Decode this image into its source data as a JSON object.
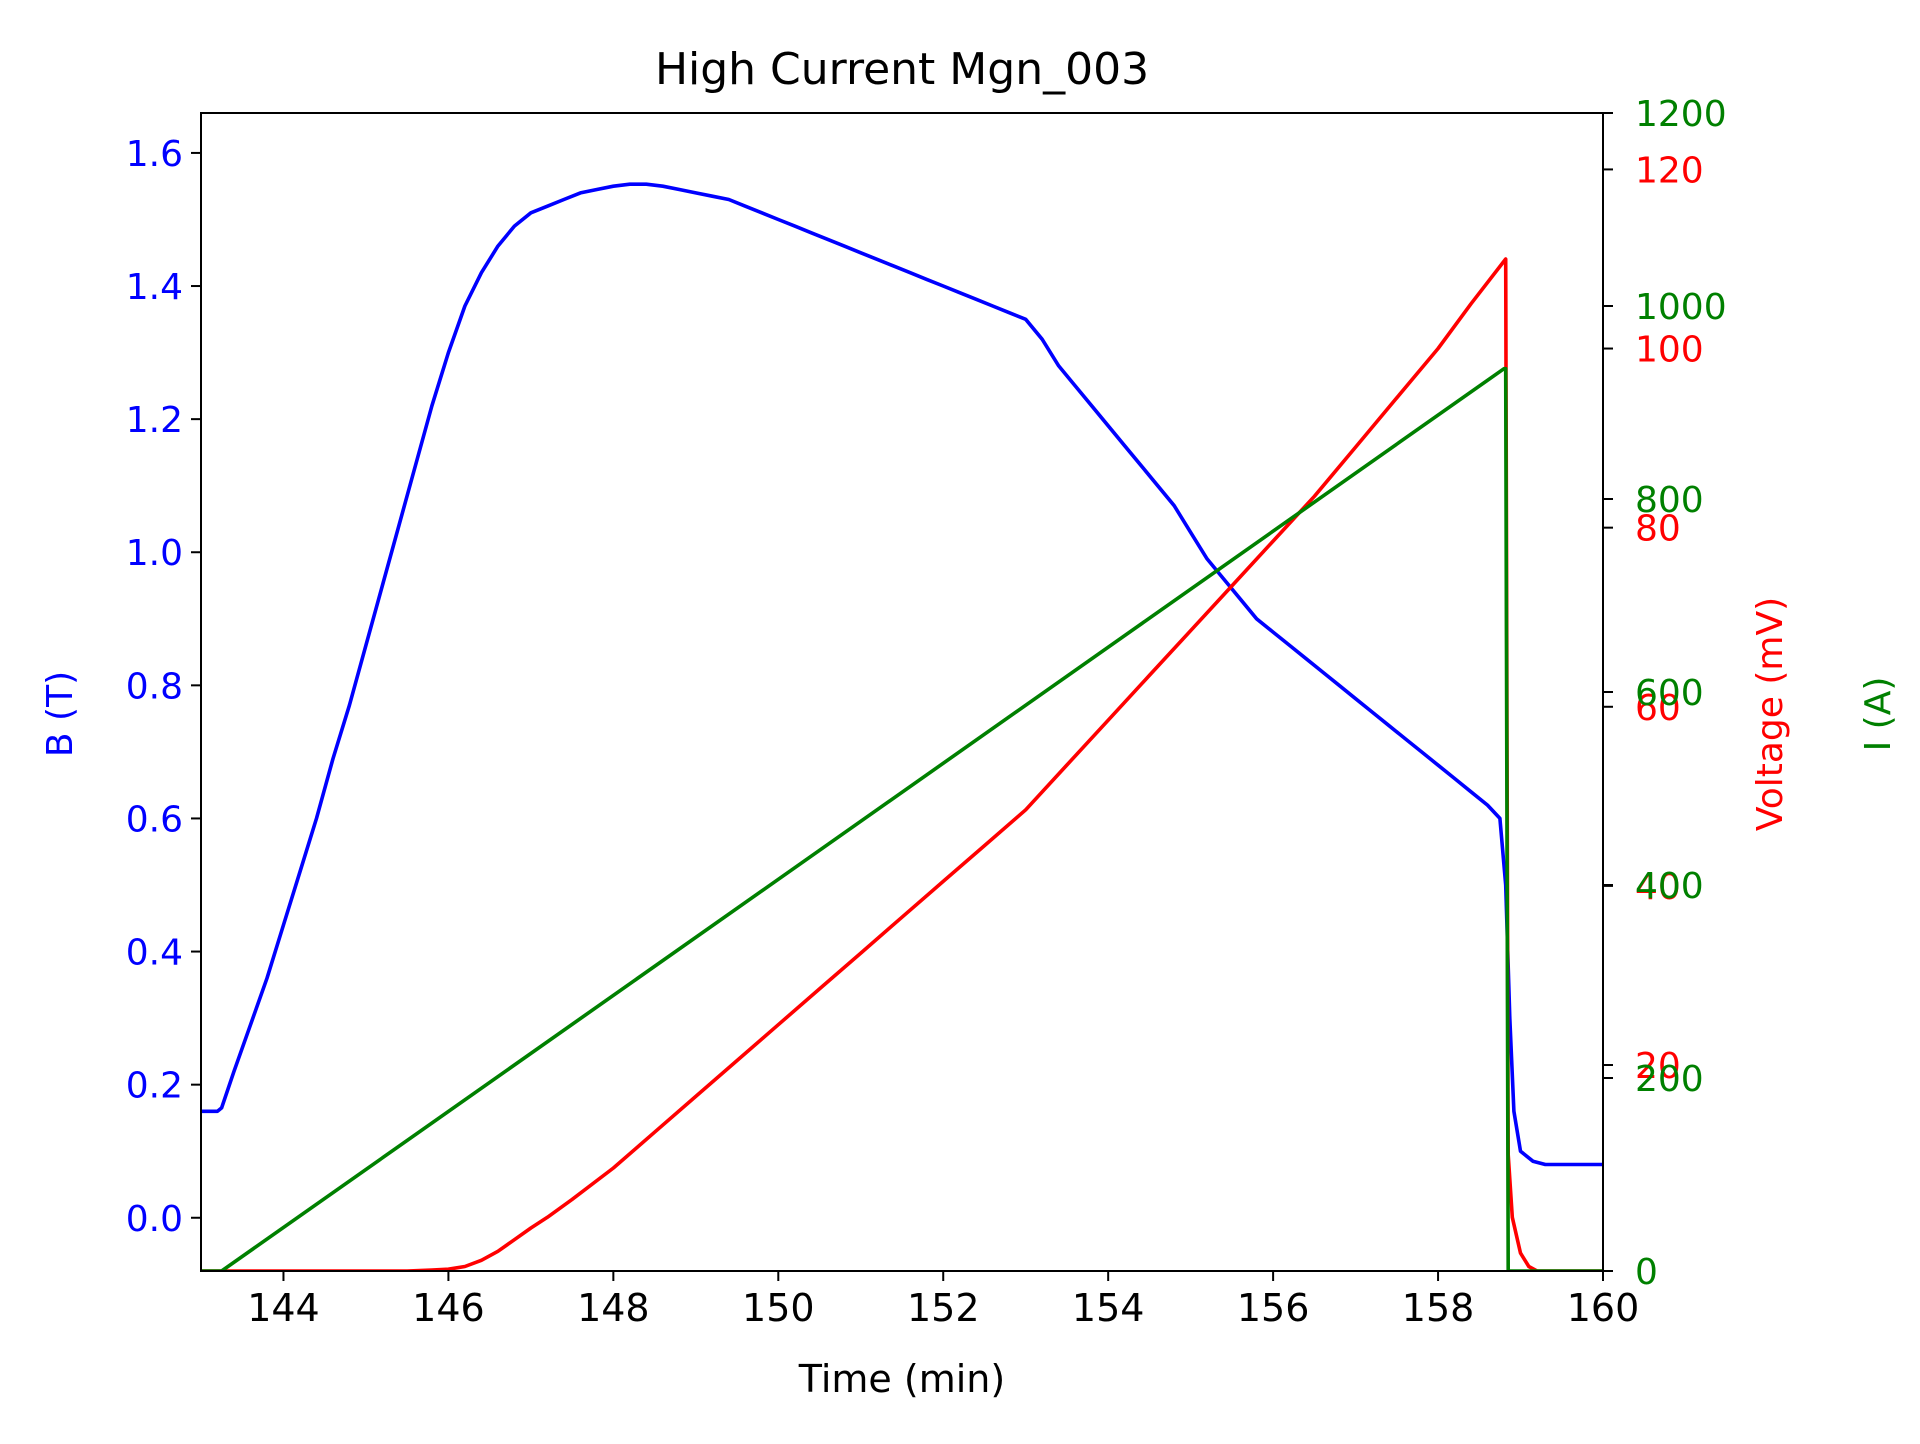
{
  "chart_data": {
    "type": "line",
    "title": "High Current Mgn_003",
    "xlabel": "Time (min)",
    "xlim": [
      143,
      160
    ],
    "xticks": [
      144,
      146,
      148,
      150,
      152,
      154,
      156,
      158,
      160
    ],
    "axes": {
      "left": {
        "label": "B (T)",
        "color": "#0000ff",
        "ylim": [
          -0.08,
          1.66
        ],
        "ticks": [
          0.0,
          0.2,
          0.4,
          0.6,
          0.8,
          1.0,
          1.2,
          1.4,
          1.6
        ]
      },
      "right1": {
        "label": "Voltage (mV)",
        "color": "#ff0000",
        "ylim": [
          -3.0,
          126.3
        ],
        "ticks": [
          20,
          40,
          60,
          80,
          100,
          120
        ]
      },
      "right2": {
        "label": "I (A)",
        "color": "#008000",
        "ylim": [
          0,
          1200
        ],
        "ticks": [
          0,
          200,
          400,
          600,
          800,
          1000,
          1200
        ]
      }
    },
    "series": [
      {
        "axis": "left",
        "color": "#0000ff",
        "x": [
          143.0,
          143.2,
          143.25,
          143.4,
          143.6,
          143.8,
          144.0,
          144.2,
          144.4,
          144.6,
          144.8,
          145.0,
          145.2,
          145.4,
          145.6,
          145.8,
          146.0,
          146.2,
          146.4,
          146.6,
          146.8,
          147.0,
          147.2,
          147.4,
          147.6,
          147.8,
          148.0,
          148.2,
          148.4,
          148.6,
          148.8,
          149.0,
          149.2,
          149.4,
          149.6,
          149.8,
          150.0,
          150.2,
          150.4,
          150.6,
          150.8,
          151.0,
          151.2,
          151.4,
          151.6,
          151.8,
          152.0,
          152.2,
          152.4,
          152.6,
          152.8,
          153.0,
          153.2,
          153.4,
          153.6,
          153.8,
          154.0,
          154.2,
          154.4,
          154.6,
          154.8,
          155.0,
          155.2,
          155.4,
          155.6,
          155.8,
          156.0,
          156.2,
          156.4,
          156.6,
          156.8,
          157.0,
          157.2,
          157.4,
          157.6,
          157.8,
          158.0,
          158.2,
          158.4,
          158.6,
          158.75,
          158.82,
          158.87,
          158.92,
          159.0,
          159.15,
          159.3,
          159.5,
          160.0
        ],
        "y": [
          0.16,
          0.16,
          0.165,
          0.22,
          0.29,
          0.36,
          0.44,
          0.52,
          0.6,
          0.69,
          0.77,
          0.86,
          0.95,
          1.04,
          1.13,
          1.22,
          1.3,
          1.37,
          1.42,
          1.46,
          1.49,
          1.51,
          1.52,
          1.53,
          1.54,
          1.545,
          1.55,
          1.553,
          1.553,
          1.55,
          1.545,
          1.54,
          1.535,
          1.53,
          1.52,
          1.51,
          1.5,
          1.49,
          1.48,
          1.47,
          1.46,
          1.45,
          1.44,
          1.43,
          1.42,
          1.41,
          1.4,
          1.39,
          1.38,
          1.37,
          1.36,
          1.35,
          1.32,
          1.28,
          1.25,
          1.22,
          1.19,
          1.16,
          1.13,
          1.1,
          1.07,
          1.03,
          0.99,
          0.96,
          0.93,
          0.9,
          0.88,
          0.86,
          0.84,
          0.82,
          0.8,
          0.78,
          0.76,
          0.74,
          0.72,
          0.7,
          0.68,
          0.66,
          0.64,
          0.62,
          0.6,
          0.5,
          0.3,
          0.16,
          0.1,
          0.085,
          0.08,
          0.08,
          0.08
        ]
      },
      {
        "axis": "right1",
        "color": "#ff0000",
        "x": [
          143.0,
          144.0,
          145.0,
          145.5,
          145.8,
          146.0,
          146.2,
          146.4,
          146.6,
          146.8,
          147.0,
          147.2,
          147.5,
          148.0,
          148.5,
          149.0,
          149.5,
          150.0,
          150.5,
          151.0,
          151.5,
          152.0,
          152.5,
          153.0,
          153.5,
          154.0,
          154.5,
          155.0,
          155.5,
          156.0,
          156.5,
          157.0,
          157.5,
          158.0,
          158.4,
          158.82,
          158.85,
          158.9,
          159.0,
          159.1,
          159.2,
          159.5,
          160.0
        ],
        "y": [
          -3.0,
          -3.0,
          -3.0,
          -3.0,
          -2.9,
          -2.8,
          -2.5,
          -1.8,
          -0.8,
          0.5,
          1.8,
          3.0,
          5.0,
          8.5,
          12.5,
          16.5,
          20.5,
          24.5,
          28.5,
          32.5,
          36.5,
          40.5,
          44.5,
          48.5,
          53.5,
          58.5,
          63.5,
          68.5,
          73.5,
          78.5,
          83.5,
          89.0,
          94.5,
          100.0,
          105.0,
          110.0,
          10.0,
          3.0,
          -1.0,
          -2.5,
          -3.0,
          -3.0,
          -3.0
        ]
      },
      {
        "axis": "right2",
        "color": "#008000",
        "x": [
          143.0,
          143.25,
          158.8,
          158.82,
          158.85,
          159.0,
          159.2,
          160.0
        ],
        "y": [
          0,
          0,
          935,
          935,
          0,
          0,
          0,
          0
        ]
      }
    ]
  }
}
